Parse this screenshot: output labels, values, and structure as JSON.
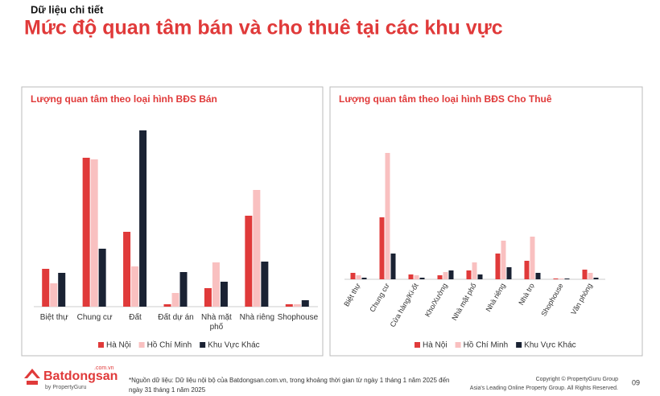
{
  "header": {
    "kicker": "Dữ liệu chi tiết",
    "title": "Mức độ quan tâm bán và cho thuê tại các khu vực"
  },
  "chart_data": [
    {
      "type": "bar",
      "title": "Lượng quan tâm theo loại hình BĐS Bán",
      "categories": [
        "Biệt thự",
        "Chung cư",
        "Đất",
        "Đất dự án",
        "Nhà mặt phố",
        "Nhà riêng",
        "Shophouse"
      ],
      "series": [
        {
          "name": "Hà Nội",
          "color": "#e03a3a",
          "values": [
            47,
            185,
            93,
            3,
            23,
            113,
            3
          ]
        },
        {
          "name": "Hồ Chí Minh",
          "color": "#f9c0c0",
          "values": [
            29,
            183,
            50,
            17,
            55,
            145,
            3
          ]
        },
        {
          "name": "Khu Vực Khác",
          "color": "#1a2233",
          "values": [
            42,
            72,
            219,
            43,
            31,
            56,
            8
          ]
        }
      ],
      "ylim": [
        0,
        230
      ],
      "label_rotation": 0
    },
    {
      "type": "bar",
      "title": "Lượng quan tâm theo loại hình BĐS Cho Thuê",
      "categories": [
        "Biệt thự",
        "Chung cư",
        "Cửa hàng/Ki-ốt",
        "Kho/Xưởng",
        "Nhà mặt phố",
        "Nhà riêng",
        "Nhà trọ",
        "Shophouse",
        "Văn phòng"
      ],
      "series": [
        {
          "name": "Hà Nội",
          "color": "#e03a3a",
          "values": [
            8,
            77,
            6,
            5,
            11,
            32,
            23,
            1,
            12
          ]
        },
        {
          "name": "Hồ Chí Minh",
          "color": "#f9c0c0",
          "values": [
            5,
            157,
            5,
            9,
            21,
            48,
            53,
            1,
            8
          ]
        },
        {
          "name": "Khu Vực Khác",
          "color": "#1a2233",
          "values": [
            2,
            32,
            2,
            11,
            6,
            15,
            8,
            1,
            2
          ]
        }
      ],
      "ylim": [
        0,
        160
      ],
      "label_rotation": -60
    }
  ],
  "footer": {
    "logo": "Batdongsan",
    "logo_domain": ".com.vn",
    "logo_by": "by PropertyGuru",
    "note": "*Nguồn dữ liệu: Dữ liệu nội bộ của Batdongsan.com.vn, trong khoảng thời gian từ ngày 1 tháng 1 năm 2025 đến ngày 31 tháng 1 năm 2025",
    "copyright": "Copyright © PropertyGuru Group",
    "tagline": "Asia's Leading Online Property Group. All Rights Reserved.",
    "page": "09"
  }
}
